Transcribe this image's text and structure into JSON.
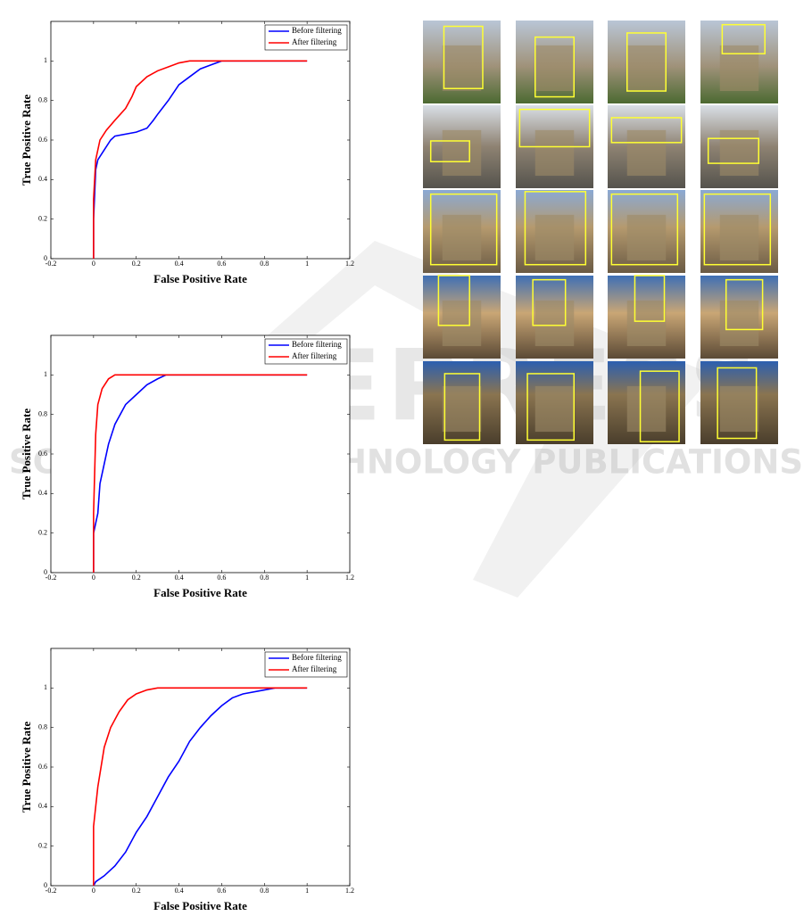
{
  "chart_data": [
    {
      "type": "line",
      "xlabel": "False Positive Rate",
      "ylabel": "True Positive Rate",
      "xlim": [
        -0.2,
        1.2
      ],
      "ylim": [
        0,
        1.2
      ],
      "xticks": [
        -0.2,
        0,
        0.2,
        0.4,
        0.6,
        0.8,
        1,
        1.2
      ],
      "yticks": [
        0,
        0.2,
        0.4,
        0.6,
        0.8,
        1
      ],
      "legend": "upper right",
      "series": [
        {
          "name": "Before filtering",
          "color": "#0000ff",
          "x": [
            0,
            0,
            0.01,
            0.02,
            0.05,
            0.08,
            0.1,
            0.2,
            0.25,
            0.28,
            0.3,
            0.35,
            0.4,
            0.45,
            0.5,
            0.55,
            0.6,
            1
          ],
          "values": [
            0,
            0.2,
            0.45,
            0.5,
            0.55,
            0.6,
            0.62,
            0.64,
            0.66,
            0.7,
            0.73,
            0.8,
            0.88,
            0.92,
            0.96,
            0.98,
            1,
            1
          ]
        },
        {
          "name": "After filtering",
          "color": "#ff0000",
          "x": [
            0,
            0,
            0.01,
            0.03,
            0.06,
            0.1,
            0.15,
            0.18,
            0.2,
            0.25,
            0.3,
            0.35,
            0.4,
            0.45,
            1
          ],
          "values": [
            0,
            0.3,
            0.5,
            0.6,
            0.65,
            0.7,
            0.76,
            0.82,
            0.87,
            0.92,
            0.95,
            0.97,
            0.99,
            1,
            1
          ]
        }
      ]
    },
    {
      "type": "line",
      "xlabel": "False Positive Rate",
      "ylabel": "True Positive Rate",
      "xlim": [
        -0.2,
        1.2
      ],
      "ylim": [
        0,
        1.2
      ],
      "xticks": [
        -0.2,
        0,
        0.2,
        0.4,
        0.6,
        0.8,
        1,
        1.2
      ],
      "yticks": [
        0,
        0.2,
        0.4,
        0.6,
        0.8,
        1
      ],
      "legend": "upper right",
      "series": [
        {
          "name": "Before filtering",
          "color": "#0000ff",
          "x": [
            0,
            0,
            0.02,
            0.03,
            0.05,
            0.07,
            0.1,
            0.15,
            0.2,
            0.25,
            0.3,
            0.34,
            1
          ],
          "values": [
            0,
            0.2,
            0.3,
            0.45,
            0.55,
            0.65,
            0.75,
            0.85,
            0.9,
            0.95,
            0.98,
            1,
            1
          ]
        },
        {
          "name": "After filtering",
          "color": "#ff0000",
          "x": [
            0,
            0,
            0.01,
            0.02,
            0.04,
            0.07,
            0.1,
            1
          ],
          "values": [
            0,
            0.3,
            0.7,
            0.85,
            0.93,
            0.98,
            1,
            1
          ]
        }
      ]
    },
    {
      "type": "line",
      "xlabel": "False Positive Rate",
      "ylabel": "True Positive Rate",
      "xlim": [
        -0.2,
        1.2
      ],
      "ylim": [
        0,
        1.2
      ],
      "xticks": [
        -0.2,
        0,
        0.2,
        0.4,
        0.6,
        0.8,
        1,
        1.2
      ],
      "yticks": [
        0,
        0.2,
        0.4,
        0.6,
        0.8,
        1
      ],
      "legend": "upper right",
      "series": [
        {
          "name": "Before filtering",
          "color": "#0000ff",
          "x": [
            0,
            0.01,
            0.05,
            0.1,
            0.15,
            0.2,
            0.25,
            0.3,
            0.35,
            0.4,
            0.45,
            0.5,
            0.55,
            0.6,
            0.65,
            0.7,
            0.8,
            0.85,
            1
          ],
          "values": [
            0,
            0.02,
            0.05,
            0.1,
            0.17,
            0.27,
            0.35,
            0.45,
            0.55,
            0.63,
            0.73,
            0.8,
            0.86,
            0.91,
            0.95,
            0.97,
            0.99,
            1,
            1
          ]
        },
        {
          "name": "After filtering",
          "color": "#ff0000",
          "x": [
            0,
            0,
            0.02,
            0.05,
            0.08,
            0.12,
            0.16,
            0.2,
            0.25,
            0.3,
            1
          ],
          "values": [
            0,
            0.3,
            0.5,
            0.7,
            0.8,
            0.88,
            0.94,
            0.97,
            0.99,
            1,
            1
          ]
        }
      ]
    }
  ],
  "watermark": {
    "title": "SCITEPRESS",
    "subtitle": "SCIENCE AND TECHNOLOGY PUBLICATIONS"
  }
}
